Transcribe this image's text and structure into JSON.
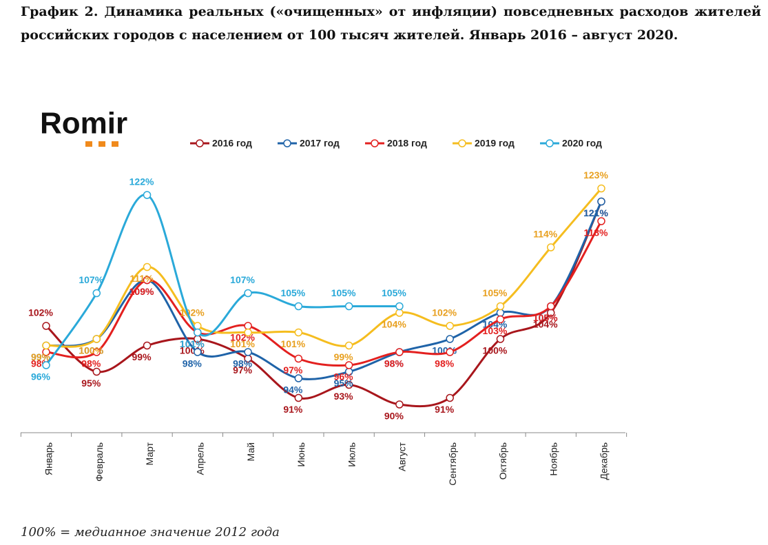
{
  "chart_data": {
    "type": "line",
    "title": "График 2. Динамика реальных («очищенных» от инфляции) повседневных расходов жителей российских городов с населением от 100 тысяч жителей. Январь 2016 – август 2020.",
    "logo": "Romir",
    "note": "100% = медианное значение 2012 года",
    "categories": [
      "Январь",
      "Февраль",
      "Март",
      "Апрель",
      "Май",
      "Июнь",
      "Июль",
      "Август",
      "Сентябрь",
      "Октябрь",
      "Ноябрь",
      "Декабрь"
    ],
    "ylim": [
      86,
      125
    ],
    "series": [
      {
        "name": "2016 год",
        "color": "#a8161c",
        "values": [
          102,
          95,
          99,
          100,
          97,
          91,
          93,
          90,
          91,
          100,
          104,
          121
        ],
        "value_labels": [
          "102%",
          "95%",
          "99%",
          "100%",
          "97%",
          "91%",
          "93%",
          "90%",
          "91%",
          "100%",
          "104%",
          "121%"
        ]
      },
      {
        "name": "2017 год",
        "color": "#1f63a8",
        "values": [
          99,
          100,
          109,
          98,
          98,
          94,
          95,
          98,
          100,
          104,
          105,
          121
        ],
        "value_labels": [
          "99%",
          "100%",
          "109%",
          "98%",
          "98%",
          "94%",
          "95%",
          "98%",
          "100%",
          "104%",
          "105%",
          "121%"
        ]
      },
      {
        "name": "2018 год",
        "color": "#e3201f",
        "values": [
          98,
          98,
          109,
          101,
          102,
          97,
          96,
          98,
          98,
          103,
          105,
          118
        ],
        "value_labels": [
          "98%",
          "98%",
          "109%",
          "101%",
          "102%",
          "97%",
          "96%",
          "98%",
          "98%",
          "103%",
          "105%",
          "118%"
        ]
      },
      {
        "name": "2019 год",
        "color": "#f5bd1f",
        "values": [
          99,
          100,
          111,
          102,
          101,
          101,
          99,
          104,
          102,
          105,
          114,
          123
        ],
        "value_labels": [
          "99%",
          "100%",
          "111%",
          "102%",
          "101%",
          "101%",
          "99%",
          "104%",
          "102%",
          "105%",
          "114%",
          "123%"
        ]
      },
      {
        "name": "2020 год",
        "color": "#2aa9d9",
        "values": [
          96,
          107,
          122,
          101,
          107,
          105,
          105,
          105,
          null,
          null,
          null,
          null
        ],
        "value_labels": [
          "96%",
          "107%",
          "122%",
          "101%",
          "107%",
          "105%",
          "105%",
          "105%",
          null,
          null,
          null,
          null
        ]
      }
    ]
  }
}
